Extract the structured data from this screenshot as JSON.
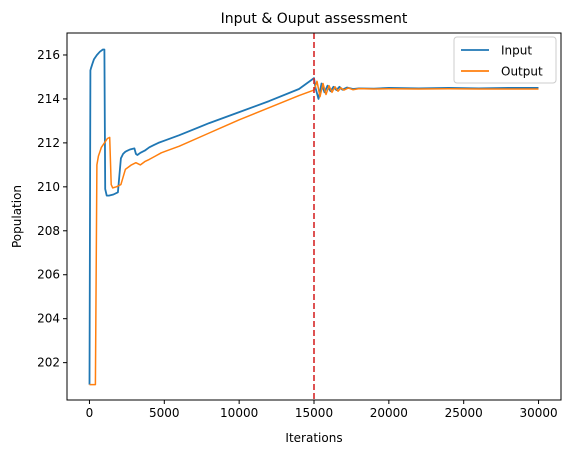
{
  "chart_data": {
    "type": "line",
    "title": "Input & Ouput assessment",
    "xlabel": "Iterations",
    "ylabel": "Population",
    "xlim": [
      -1500,
      31500
    ],
    "ylim": [
      200.3,
      217.0
    ],
    "xticks": [
      0,
      5000,
      10000,
      15000,
      20000,
      25000,
      30000
    ],
    "yticks": [
      202,
      204,
      206,
      208,
      210,
      212,
      214,
      216
    ],
    "grid": false,
    "legend_position": "top-right",
    "vline": {
      "x": 15000,
      "color": "#d62728",
      "style": "dashed"
    },
    "series": [
      {
        "name": "Input",
        "color": "#1f77b4",
        "x": [
          0,
          60,
          100,
          200,
          300,
          500,
          700,
          900,
          1000,
          1050,
          1150,
          1300,
          1600,
          1900,
          2100,
          2250,
          2400,
          2700,
          3000,
          3100,
          3200,
          3400,
          3700,
          4000,
          4300,
          4600,
          5000,
          6000,
          8000,
          10000,
          12000,
          14000,
          15000,
          15100,
          15300,
          15500,
          15700,
          15900,
          16100,
          16300,
          16500,
          16700,
          16900,
          17200,
          17600,
          18000,
          19000,
          20000,
          22000,
          24000,
          26000,
          28000,
          30000
        ],
        "y": [
          201.0,
          215.3,
          215.4,
          215.6,
          215.8,
          216.0,
          216.15,
          216.25,
          216.25,
          209.9,
          209.6,
          209.6,
          209.65,
          209.75,
          211.3,
          211.5,
          211.6,
          211.7,
          211.75,
          211.5,
          211.45,
          211.55,
          211.65,
          211.8,
          211.9,
          212.0,
          212.1,
          212.35,
          212.9,
          213.4,
          213.9,
          214.45,
          214.95,
          214.5,
          214.0,
          214.7,
          214.3,
          214.6,
          214.35,
          214.55,
          214.4,
          214.55,
          214.42,
          214.52,
          214.45,
          214.48,
          214.47,
          214.5,
          214.48,
          214.5,
          214.48,
          214.5,
          214.5
        ]
      },
      {
        "name": "Output",
        "color": "#ff7f0e",
        "x": [
          0,
          200,
          400,
          500,
          600,
          700,
          800,
          1000,
          1200,
          1350,
          1450,
          1550,
          1800,
          2100,
          2400,
          2600,
          2800,
          3100,
          3400,
          3700,
          4000,
          4400,
          4800,
          5200,
          6000,
          8000,
          10000,
          12000,
          14000,
          15000,
          15200,
          15400,
          15600,
          15800,
          16000,
          16200,
          16400,
          16600,
          16800,
          17000,
          17300,
          17600,
          18000,
          19000,
          20000,
          22000,
          24000,
          26000,
          28000,
          30000
        ],
        "y": [
          201.0,
          201.0,
          201.0,
          211.0,
          211.4,
          211.6,
          211.8,
          212.0,
          212.2,
          212.25,
          210.1,
          209.95,
          210.0,
          210.1,
          210.8,
          210.9,
          211.0,
          211.1,
          211.0,
          211.15,
          211.25,
          211.4,
          211.55,
          211.65,
          211.85,
          212.45,
          213.05,
          213.6,
          214.15,
          214.4,
          214.8,
          214.1,
          214.7,
          214.2,
          214.6,
          214.3,
          214.55,
          214.35,
          214.5,
          214.4,
          214.5,
          214.42,
          214.47,
          214.45,
          214.46,
          214.45,
          214.46,
          214.45,
          214.45,
          214.45
        ]
      }
    ]
  }
}
